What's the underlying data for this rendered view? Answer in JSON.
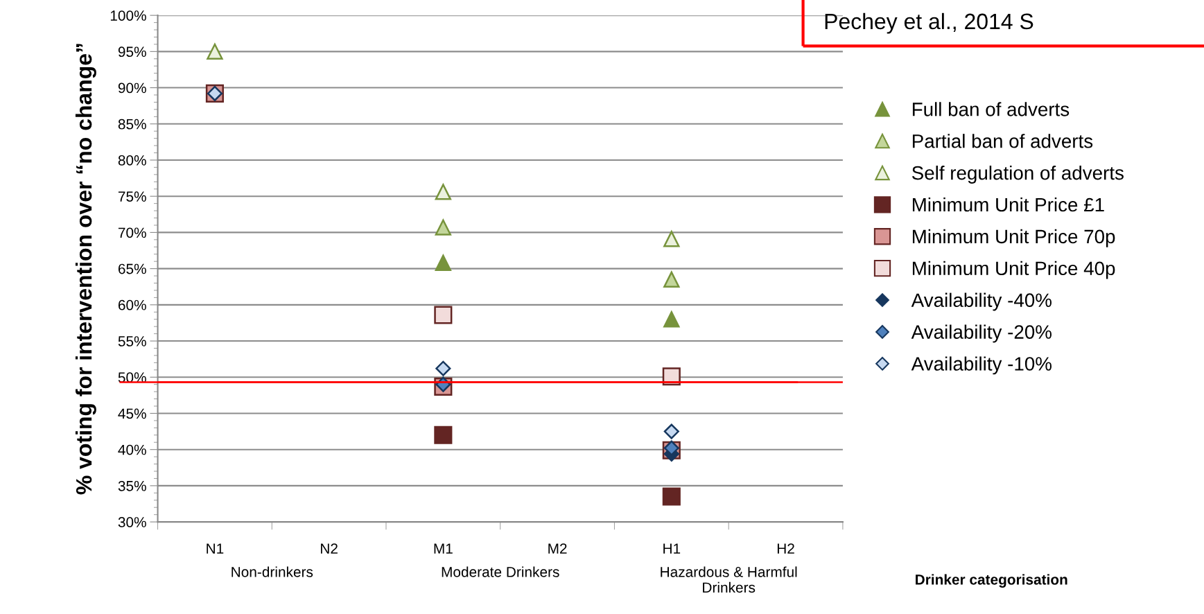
{
  "chart_data": {
    "type": "scatter",
    "categories": [
      "N1",
      "N2",
      "M1",
      "M2",
      "H1",
      "H2"
    ],
    "ylabel": "% voting for intervention over “no change”",
    "ylim": [
      30,
      100
    ],
    "yticks": [
      {
        "value": 30,
        "label": "30%"
      },
      {
        "value": 35,
        "label": "35%"
      },
      {
        "value": 40,
        "label": "40%"
      },
      {
        "value": 45,
        "label": "45%"
      },
      {
        "value": 50,
        "label": "50%"
      },
      {
        "value": 55,
        "label": "55%"
      },
      {
        "value": 60,
        "label": "60%"
      },
      {
        "value": 65,
        "label": "65%"
      },
      {
        "value": 70,
        "label": "70%"
      },
      {
        "value": 75,
        "label": "75%"
      },
      {
        "value": 80,
        "label": "80%"
      },
      {
        "value": 85,
        "label": "85%"
      },
      {
        "value": 90,
        "label": "90%"
      },
      {
        "value": 95,
        "label": "95%"
      },
      {
        "value": 100,
        "label": "100%"
      }
    ],
    "grid": "y",
    "legend": "right",
    "series": [
      {
        "name": "Full ban of adverts",
        "color": "#77933c",
        "marker": "triangle",
        "values": [
          null,
          null,
          65.8,
          null,
          58.0,
          null
        ]
      },
      {
        "name": "Partial ban of adverts",
        "color": "#c3d69b",
        "marker": "triangle",
        "values": [
          null,
          null,
          70.7,
          null,
          63.5,
          null
        ]
      },
      {
        "name": "Self regulation of adverts",
        "color": "#ebf1de",
        "marker": "triangle",
        "values": [
          95.0,
          null,
          75.6,
          null,
          69.1,
          null
        ]
      },
      {
        "name": "Minimum Unit Price £1",
        "color": "#632523",
        "marker": "square",
        "values": [
          null,
          null,
          42.0,
          null,
          33.5,
          null
        ]
      },
      {
        "name": "Minimum Unit Price 70p",
        "color": "#d99694",
        "marker": "square",
        "values": [
          89.2,
          null,
          48.7,
          null,
          39.9,
          null
        ]
      },
      {
        "name": "Minimum Unit Price 40p",
        "color": "#f2dcdb",
        "marker": "square",
        "values": [
          null,
          null,
          58.6,
          null,
          50.1,
          null
        ]
      },
      {
        "name": "Availability -40%",
        "color": "#17375e",
        "marker": "diamond",
        "values": [
          null,
          null,
          null,
          null,
          39.4,
          null
        ]
      },
      {
        "name": "Availability -20%",
        "color": "#4f81bd",
        "marker": "diamond",
        "values": [
          null,
          null,
          49.0,
          null,
          40.2,
          null
        ]
      },
      {
        "name": "Availability -10%",
        "color": "#c6d9f1",
        "marker": "diamond",
        "values": [
          89.2,
          null,
          51.2,
          null,
          42.5,
          null
        ]
      }
    ],
    "ref_lines": [
      {
        "axis": "y",
        "value": 49.3,
        "color": "#ff0000"
      }
    ],
    "annotations": [
      "Non-drinkers",
      "Moderate Drinkers",
      "Hazardous & Harmful\nDrinkers",
      "Drinker categorisation",
      "Pechey et al., 2014 S"
    ]
  }
}
